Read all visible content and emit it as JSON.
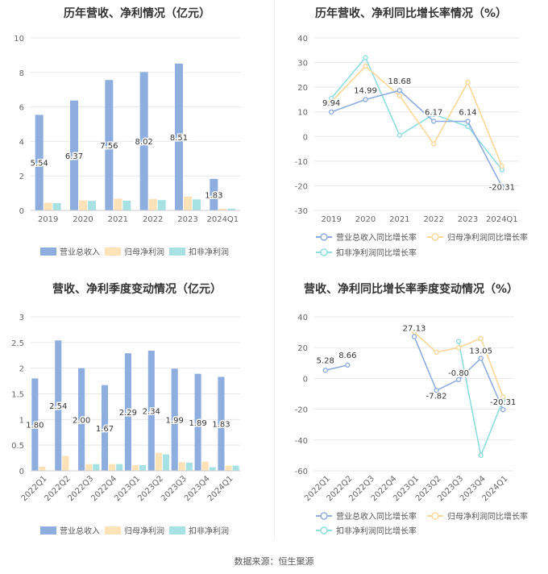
{
  "footer": "数据来源：恒生聚源",
  "colors": {
    "revenue": "#8eaedf",
    "netprofit": "#fce2b6",
    "deducted": "#a6e2e3",
    "revenue_line": "#8eaedf",
    "netprofit_line": "#fcd799",
    "deducted_line": "#8fdde0"
  },
  "chart_data": [
    {
      "type": "bar",
      "title": "历年营收、净利情况（亿元）",
      "categories": [
        "2019",
        "2020",
        "2021",
        "2022",
        "2023",
        "2024Q1"
      ],
      "ylim": [
        0,
        10
      ],
      "yticks": [
        0,
        2,
        4,
        6,
        8,
        10
      ],
      "series": [
        {
          "name": "营业总收入",
          "values": [
            5.54,
            6.37,
            7.56,
            8.02,
            8.51,
            1.83
          ],
          "labels": [
            "5.54",
            "6.37",
            "7.56",
            "8.02",
            "8.51",
            "1.83"
          ]
        },
        {
          "name": "归母净利润",
          "values": [
            0.45,
            0.58,
            0.68,
            0.66,
            0.8,
            0.1
          ]
        },
        {
          "name": "扣非净利润",
          "values": [
            0.42,
            0.55,
            0.56,
            0.6,
            0.64,
            0.1
          ]
        }
      ],
      "legend_position": "bottom"
    },
    {
      "type": "line",
      "title": "历年营收、净利同比增长率情况（%）",
      "categories": [
        "2019",
        "2020",
        "2021",
        "2022",
        "2023",
        "2024Q1"
      ],
      "ylim": [
        -30,
        40
      ],
      "yticks": [
        -30,
        -20,
        -10,
        0,
        10,
        20,
        30,
        40
      ],
      "series": [
        {
          "name": "营业总收入同比增长率",
          "values": [
            9.94,
            14.99,
            18.68,
            6.17,
            6.14,
            -20.31
          ],
          "labels": [
            "9.94",
            "14.99",
            "18.68",
            "6.17",
            "6.14",
            "-20.31"
          ]
        },
        {
          "name": "归母净利润同比增长率",
          "values": [
            14.0,
            28.5,
            16.5,
            -3.0,
            22.0,
            -12.0
          ]
        },
        {
          "name": "扣非净利润同比增长率",
          "values": [
            15.5,
            32.0,
            0.5,
            9.0,
            4.0,
            -13.5
          ]
        }
      ],
      "legend_position": "bottom"
    },
    {
      "type": "bar",
      "title": "营收、净利季度变动情况（亿元）",
      "categories": [
        "2022Q1",
        "2022Q2",
        "2022Q3",
        "2022Q4",
        "2023Q1",
        "2023Q2",
        "2023Q3",
        "2023Q4",
        "2024Q1"
      ],
      "ylim": [
        0,
        3
      ],
      "yticks": [
        0,
        0.5,
        1,
        1.5,
        2,
        2.5,
        3
      ],
      "ytick_labels": [
        "0",
        "0.5",
        "1",
        "1.5",
        "2",
        "2.5",
        "3"
      ],
      "series": [
        {
          "name": "营业总收入",
          "values": [
            1.8,
            2.54,
            2.0,
            1.67,
            2.29,
            2.34,
            1.99,
            1.89,
            1.83
          ],
          "labels": [
            "1.80",
            "2.54",
            "2.00",
            "1.67",
            "2.29",
            "2.34",
            "1.99",
            "1.89",
            "1.83"
          ]
        },
        {
          "name": "归母净利润",
          "values": [
            0.08,
            0.29,
            0.13,
            0.13,
            0.11,
            0.35,
            0.17,
            0.18,
            0.1
          ]
        },
        {
          "name": "扣非净利润",
          "values": [
            0.0,
            0.0,
            0.13,
            0.13,
            0.11,
            0.32,
            0.16,
            0.07,
            0.1
          ]
        }
      ],
      "legend_position": "bottom"
    },
    {
      "type": "line",
      "title": "营收、净利同比增长率季度变动情况（%）",
      "categories": [
        "2022Q1",
        "2022Q2",
        "2022Q3",
        "2022Q4",
        "2023Q1",
        "2023Q2",
        "2023Q3",
        "2023Q4",
        "2024Q1"
      ],
      "ylim": [
        -60,
        40
      ],
      "yticks": [
        -60,
        -40,
        -20,
        0,
        20,
        40
      ],
      "series": [
        {
          "name": "营业总收入同比增长率",
          "values": [
            5.28,
            8.66,
            null,
            null,
            27.13,
            -7.82,
            -0.8,
            13.05,
            -20.31
          ],
          "labels": [
            "5.28",
            "8.66",
            "",
            "",
            "27.13",
            "-7.82",
            "-0.80",
            "13.05",
            "-20.31"
          ]
        },
        {
          "name": "归母净利润同比增长率",
          "values": [
            null,
            null,
            null,
            null,
            30.0,
            17.0,
            20.0,
            26.0,
            -12.0
          ]
        },
        {
          "name": "扣非净利润同比增长率",
          "values": [
            null,
            null,
            null,
            null,
            null,
            null,
            24.0,
            -50.0,
            -14.0
          ]
        }
      ],
      "legend_position": "bottom"
    }
  ]
}
